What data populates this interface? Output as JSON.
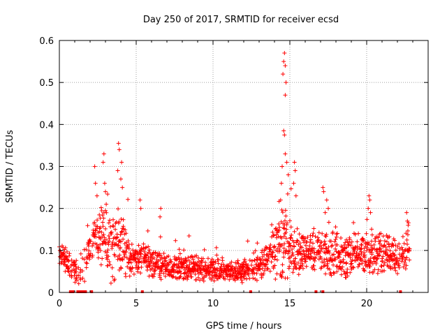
{
  "chart_data": {
    "type": "scatter",
    "title": "Day 250 of 2017, SRMTID for receiver ecsd",
    "xlabel": "GPS time / hours",
    "ylabel": "SRMTID / TECUs",
    "xlim": [
      0,
      24
    ],
    "ylim": [
      0,
      0.6
    ],
    "grid": true,
    "marker": "+",
    "colors": {
      "points": "#ff0000",
      "gaps": "#ff0000",
      "grid": "#a0a0a0",
      "axis": "#000000"
    },
    "x_ticks": [
      {
        "value": 0,
        "label": "0"
      },
      {
        "value": 5,
        "label": "5"
      },
      {
        "value": 10,
        "label": "10"
      },
      {
        "value": 15,
        "label": "15"
      },
      {
        "value": 20,
        "label": "20"
      }
    ],
    "y_ticks": [
      {
        "value": 0,
        "label": "0"
      },
      {
        "value": 0.1,
        "label": "0.1"
      },
      {
        "value": 0.2,
        "label": "0.2"
      },
      {
        "value": 0.3,
        "label": "0.3"
      },
      {
        "value": 0.4,
        "label": "0.4"
      },
      {
        "value": 0.5,
        "label": "0.5"
      },
      {
        "value": 0.6,
        "label": "0.6"
      }
    ],
    "envelope_base": [
      [
        0.0,
        0.08
      ],
      [
        0.5,
        0.075
      ],
      [
        1.0,
        0.05
      ],
      [
        1.5,
        0.05
      ],
      [
        2.0,
        0.11
      ],
      [
        2.5,
        0.14
      ],
      [
        3.0,
        0.13
      ],
      [
        3.5,
        0.1
      ],
      [
        4.0,
        0.12
      ],
      [
        4.5,
        0.08
      ],
      [
        5.0,
        0.08
      ],
      [
        5.5,
        0.09
      ],
      [
        6.0,
        0.07
      ],
      [
        7.0,
        0.06
      ],
      [
        8.0,
        0.06
      ],
      [
        9.0,
        0.06
      ],
      [
        10.0,
        0.055
      ],
      [
        11.0,
        0.05
      ],
      [
        12.0,
        0.05
      ],
      [
        13.0,
        0.06
      ],
      [
        13.5,
        0.09
      ],
      [
        14.0,
        0.1
      ],
      [
        14.5,
        0.12
      ],
      [
        15.0,
        0.11
      ],
      [
        15.5,
        0.09
      ],
      [
        16.0,
        0.09
      ],
      [
        17.0,
        0.1
      ],
      [
        18.0,
        0.09
      ],
      [
        19.0,
        0.09
      ],
      [
        20.0,
        0.1
      ],
      [
        21.0,
        0.09
      ],
      [
        22.0,
        0.08
      ],
      [
        22.8,
        0.11
      ]
    ],
    "envelope_spread": [
      [
        0.0,
        0.03
      ],
      [
        2.0,
        0.05
      ],
      [
        3.0,
        0.09
      ],
      [
        4.0,
        0.09
      ],
      [
        5.0,
        0.04
      ],
      [
        6.5,
        0.04
      ],
      [
        9.0,
        0.035
      ],
      [
        12.0,
        0.03
      ],
      [
        13.5,
        0.04
      ],
      [
        14.5,
        0.12
      ],
      [
        15.0,
        0.08
      ],
      [
        16.0,
        0.05
      ],
      [
        18.0,
        0.06
      ],
      [
        20.0,
        0.06
      ],
      [
        22.8,
        0.05
      ]
    ],
    "peak_points": [
      {
        "x": 2.3,
        "y": 0.3
      },
      {
        "x": 2.35,
        "y": 0.26
      },
      {
        "x": 2.45,
        "y": 0.23
      },
      {
        "x": 2.9,
        "y": 0.33
      },
      {
        "x": 2.85,
        "y": 0.31
      },
      {
        "x": 2.95,
        "y": 0.26
      },
      {
        "x": 3.0,
        "y": 0.24
      },
      {
        "x": 3.05,
        "y": 0.21
      },
      {
        "x": 3.85,
        "y": 0.355
      },
      {
        "x": 3.9,
        "y": 0.34
      },
      {
        "x": 3.8,
        "y": 0.29
      },
      {
        "x": 4.05,
        "y": 0.31
      },
      {
        "x": 4.0,
        "y": 0.27
      },
      {
        "x": 4.1,
        "y": 0.25
      },
      {
        "x": 5.25,
        "y": 0.22
      },
      {
        "x": 5.3,
        "y": 0.2
      },
      {
        "x": 6.6,
        "y": 0.2
      },
      {
        "x": 6.55,
        "y": 0.18
      },
      {
        "x": 14.65,
        "y": 0.57
      },
      {
        "x": 14.6,
        "y": 0.55
      },
      {
        "x": 14.7,
        "y": 0.54
      },
      {
        "x": 14.55,
        "y": 0.52
      },
      {
        "x": 14.75,
        "y": 0.5
      },
      {
        "x": 14.7,
        "y": 0.47
      },
      {
        "x": 14.6,
        "y": 0.385
      },
      {
        "x": 14.65,
        "y": 0.375
      },
      {
        "x": 14.7,
        "y": 0.33
      },
      {
        "x": 14.5,
        "y": 0.3
      },
      {
        "x": 14.8,
        "y": 0.31
      },
      {
        "x": 14.45,
        "y": 0.26
      },
      {
        "x": 14.9,
        "y": 0.28
      },
      {
        "x": 14.4,
        "y": 0.22
      },
      {
        "x": 15.3,
        "y": 0.31
      },
      {
        "x": 15.35,
        "y": 0.29
      },
      {
        "x": 15.25,
        "y": 0.26
      },
      {
        "x": 15.4,
        "y": 0.23
      },
      {
        "x": 17.15,
        "y": 0.25
      },
      {
        "x": 17.2,
        "y": 0.24
      },
      {
        "x": 17.4,
        "y": 0.22
      },
      {
        "x": 17.5,
        "y": 0.2
      },
      {
        "x": 17.3,
        "y": 0.19
      },
      {
        "x": 20.15,
        "y": 0.23
      },
      {
        "x": 20.2,
        "y": 0.22
      },
      {
        "x": 20.1,
        "y": 0.2
      },
      {
        "x": 20.25,
        "y": 0.19
      },
      {
        "x": 22.6,
        "y": 0.19
      },
      {
        "x": 22.65,
        "y": 0.17
      },
      {
        "x": 22.7,
        "y": 0.16
      }
    ],
    "gap_markers": [
      0.72,
      0.88,
      1.2,
      1.32,
      1.45,
      1.58,
      1.7,
      2.1,
      5.4,
      12.45,
      16.7,
      17.15,
      22.2
    ],
    "x_data_max": 22.8,
    "sample_step_hours": 0.02,
    "random_seed": 250
  }
}
